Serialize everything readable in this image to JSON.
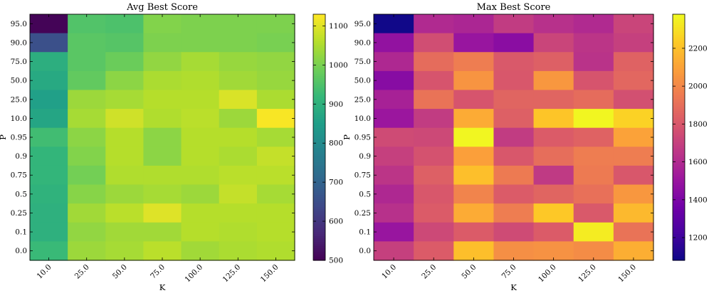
{
  "chart_data": [
    {
      "type": "heatmap",
      "title": "Avg Best Score",
      "xlabel": "K",
      "ylabel": "P",
      "x": [
        "10.0",
        "25.0",
        "50.0",
        "75.0",
        "100.0",
        "125.0",
        "150.0"
      ],
      "y": [
        "95.0",
        "90.0",
        "75.0",
        "50.0",
        "25.0",
        "10.0",
        "0.95",
        "0.9",
        "0.75",
        "0.5",
        "0.25",
        "0.1",
        "0.0"
      ],
      "colormap": "viridis",
      "clim": [
        500,
        1130
      ],
      "colorbar_ticks": [
        "500",
        "600",
        "700",
        "800",
        "900",
        "1000",
        "1100"
      ],
      "values": [
        [
          505,
          955,
          950,
          1010,
          1005,
          1005,
          1005
        ],
        [
          655,
          965,
          960,
          1005,
          1005,
          1005,
          1000
        ],
        [
          895,
          965,
          985,
          1025,
          1045,
          1030,
          1025
        ],
        [
          880,
          975,
          1020,
          1050,
          1055,
          1040,
          1030
        ],
        [
          855,
          1035,
          1045,
          1060,
          1060,
          1095,
          1050
        ],
        [
          870,
          1045,
          1085,
          1055,
          1065,
          1035,
          1125
        ],
        [
          935,
          1020,
          1060,
          1020,
          1060,
          1060,
          1045
        ],
        [
          915,
          1010,
          1060,
          1020,
          1060,
          1050,
          1075
        ],
        [
          915,
          995,
          1055,
          1055,
          1055,
          1065,
          1065
        ],
        [
          905,
          1015,
          1035,
          1045,
          1035,
          1075,
          1045
        ],
        [
          900,
          1040,
          1065,
          1100,
          1060,
          1060,
          1060
        ],
        [
          900,
          1025,
          1040,
          1040,
          1060,
          1055,
          1060
        ],
        [
          925,
          1035,
          1045,
          1065,
          1040,
          1050,
          1055
        ]
      ]
    },
    {
      "type": "heatmap",
      "title": "Max Best Score",
      "xlabel": "K",
      "ylabel": "P",
      "x": [
        "10.0",
        "25.0",
        "50.0",
        "75.0",
        "100.0",
        "125.0",
        "150.0"
      ],
      "y": [
        "95.0",
        "90.0",
        "75.0",
        "50.0",
        "25.0",
        "10.0",
        "0.95",
        "0.9",
        "0.75",
        "0.5",
        "0.25",
        "0.1",
        "0.0"
      ],
      "colormap": "plasma",
      "clim": [
        1080,
        2380
      ],
      "colorbar_ticks": [
        "1200",
        "1400",
        "1600",
        "1800",
        "2000",
        "2200"
      ],
      "values": [
        [
          1090,
          1600,
          1580,
          1680,
          1630,
          1600,
          1720
        ],
        [
          1480,
          1760,
          1500,
          1450,
          1720,
          1650,
          1700
        ],
        [
          1590,
          1890,
          1960,
          1810,
          1840,
          1640,
          1850
        ],
        [
          1440,
          1790,
          2050,
          1800,
          2060,
          1790,
          1870
        ],
        [
          1560,
          1920,
          1790,
          1860,
          1860,
          1890,
          1770
        ],
        [
          1510,
          1680,
          2130,
          1840,
          2220,
          2370,
          2260
        ],
        [
          1750,
          1740,
          2370,
          1680,
          1820,
          1850,
          2100
        ],
        [
          1700,
          1780,
          2090,
          1800,
          1900,
          1960,
          1960
        ],
        [
          1650,
          1840,
          2200,
          1950,
          1670,
          1950,
          1800
        ],
        [
          1590,
          1800,
          1990,
          1820,
          1860,
          1910,
          2060
        ],
        [
          1630,
          1820,
          2130,
          1960,
          2230,
          1810,
          2180
        ],
        [
          1500,
          1740,
          1820,
          1750,
          1820,
          2340,
          1920
        ],
        [
          1700,
          1820,
          2200,
          2030,
          2040,
          2020,
          2140
        ]
      ]
    }
  ]
}
